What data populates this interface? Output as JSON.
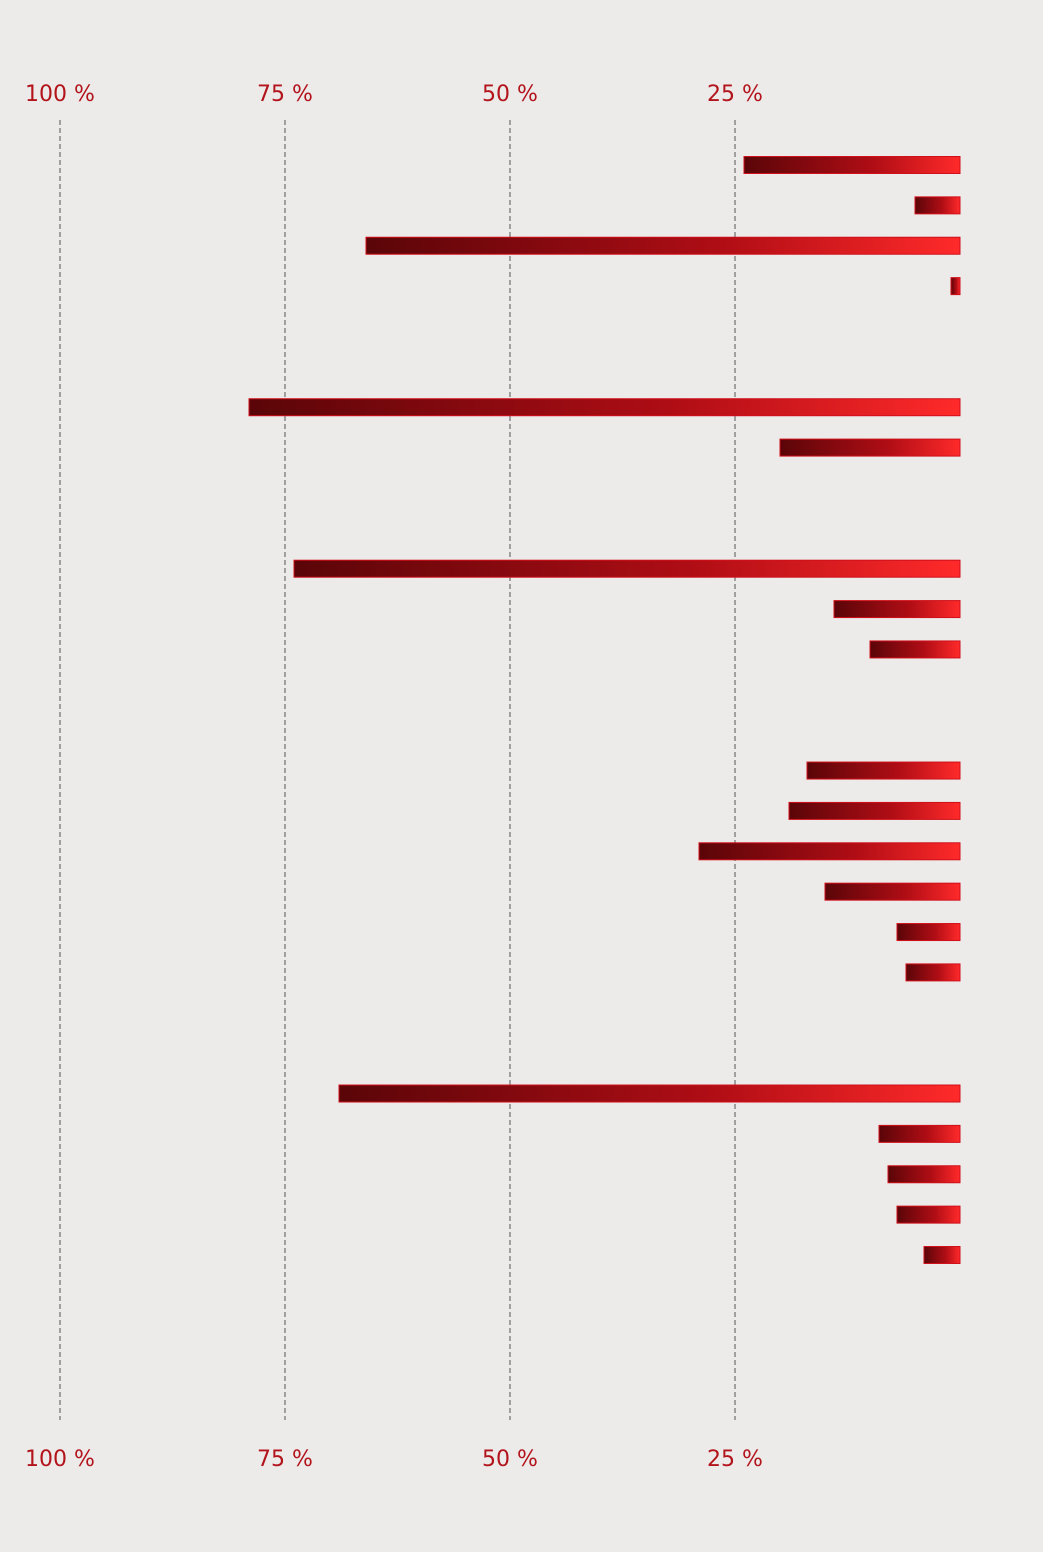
{
  "chart_data": {
    "type": "bar",
    "orientation": "horizontal",
    "x_reversed": true,
    "values": [
      24,
      5,
      66,
      1,
      null,
      null,
      79,
      20,
      null,
      null,
      74,
      14,
      10,
      null,
      null,
      17,
      19,
      29,
      15,
      7,
      6,
      null,
      null,
      69,
      9,
      8,
      7,
      4
    ],
    "color": "#d0101a",
    "xlim": [
      0,
      100
    ],
    "xticks": [
      {
        "value": 25,
        "label": "25 %"
      },
      {
        "value": 50,
        "label": "50 %"
      },
      {
        "value": 75,
        "label": "75 %"
      },
      {
        "value": 100,
        "label": "100 %"
      }
    ],
    "grid": true
  }
}
